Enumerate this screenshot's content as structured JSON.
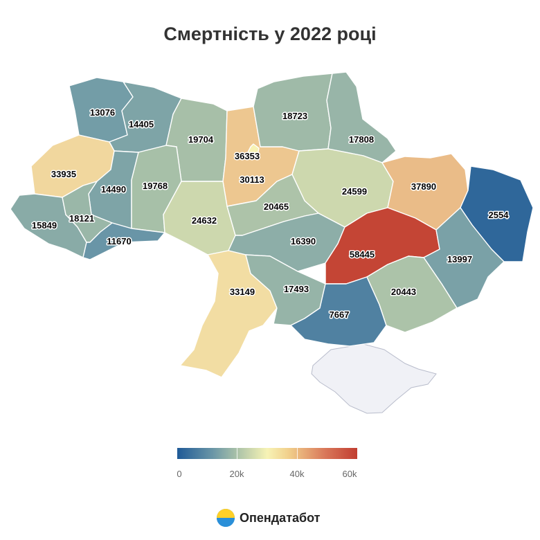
{
  "title": "Смертність у 2022 році",
  "legend": {
    "min_label": "0",
    "tick_labels": [
      "0",
      "20k",
      "40k",
      "60k"
    ],
    "colors": [
      "#1f5a97",
      "#7fa3aa",
      "#f7f3b5",
      "#c13d30"
    ]
  },
  "brand": {
    "name": "Опендатабот",
    "icon": "opendatabot-logo-icon"
  },
  "chart_data": {
    "type": "choropleth",
    "title": "Смертність у 2022 році",
    "scale_range": [
      0,
      60000
    ],
    "regions": [
      {
        "id": "volyn",
        "value": 13076
      },
      {
        "id": "rivne",
        "value": 14405
      },
      {
        "id": "zhytomyr",
        "value": 19704
      },
      {
        "id": "kyiv-oblast",
        "value": 36353
      },
      {
        "id": "kyiv-city",
        "value": 30113
      },
      {
        "id": "chernihiv",
        "value": 18723
      },
      {
        "id": "sumy",
        "value": 17808
      },
      {
        "id": "lviv",
        "value": 33935
      },
      {
        "id": "ternopil",
        "value": 14490
      },
      {
        "id": "khmelnytskyi",
        "value": 19768
      },
      {
        "id": "poltava",
        "value": 24599
      },
      {
        "id": "kharkiv",
        "value": 37890
      },
      {
        "id": "luhansk",
        "value": 2554
      },
      {
        "id": "zakarpattia",
        "value": 15849
      },
      {
        "id": "ivano-frankivsk",
        "value": 18121
      },
      {
        "id": "chernivtsi",
        "value": 11670
      },
      {
        "id": "vinnytsia",
        "value": 24632
      },
      {
        "id": "cherkasy",
        "value": 20465
      },
      {
        "id": "kirovohrad",
        "value": 16390
      },
      {
        "id": "dnipropetrovsk",
        "value": 58445
      },
      {
        "id": "donetsk",
        "value": 13997
      },
      {
        "id": "odesa",
        "value": 33149
      },
      {
        "id": "mykolaiv",
        "value": 17493
      },
      {
        "id": "kherson",
        "value": 7667
      },
      {
        "id": "zaporizhzhia",
        "value": 20443
      }
    ]
  }
}
